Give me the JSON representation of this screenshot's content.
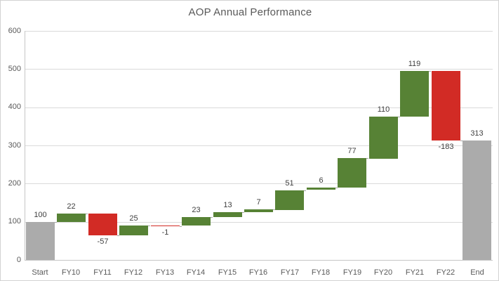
{
  "window": {
    "background": "#FFFFFF",
    "border_color": "#D2D2D2"
  },
  "chart_data": {
    "type": "bar",
    "variant": "waterfall",
    "title": "AOP Annual Performance",
    "categories": [
      "Start",
      "FY10",
      "FY11",
      "FY12",
      "FY13",
      "FY14",
      "FY15",
      "FY16",
      "FY17",
      "FY18",
      "FY19",
      "FY20",
      "FY21",
      "FY22",
      "End"
    ],
    "values": [
      100,
      22,
      -57,
      25,
      -1,
      23,
      13,
      7,
      51,
      6,
      77,
      110,
      119,
      -183,
      313
    ],
    "roles": [
      "total",
      "increase",
      "decrease",
      "increase",
      "decrease",
      "increase",
      "increase",
      "increase",
      "increase",
      "increase",
      "increase",
      "increase",
      "increase",
      "decrease",
      "total"
    ],
    "data_labels": [
      "100",
      "22",
      "-57",
      "25",
      "-1",
      "23",
      "13",
      "7",
      "51",
      "6",
      "77",
      "110",
      "119",
      "-183",
      "313"
    ],
    "xlabel": "",
    "ylabel": "",
    "ylim": [
      0,
      600
    ],
    "ytick_step": 100,
    "ytick_labels": [
      "0",
      "100",
      "200",
      "300",
      "400",
      "500",
      "600"
    ],
    "grid": true,
    "legend": false,
    "colors": {
      "increase": "#578235",
      "decrease": "#D22B25",
      "total": "#ABABAB",
      "gridline": "#DADADA",
      "axis_line": "#C6C6C6",
      "connector": "#A6A6A6",
      "title_text": "#595959",
      "axis_text": "#595959",
      "label_text": "#404040"
    }
  }
}
